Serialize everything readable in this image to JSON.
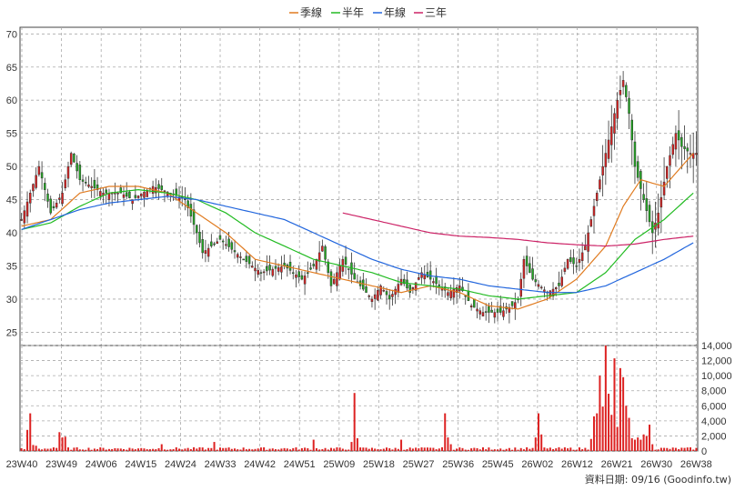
{
  "chart_data": [
    {
      "type": "candlestick",
      "title": "",
      "legend": {
        "placement": "top-center",
        "entries": [
          {
            "name": "季線",
            "color": "#e07b20"
          },
          {
            "name": "半年",
            "color": "#22bb22"
          },
          {
            "name": "年線",
            "color": "#2266dd"
          },
          {
            "name": "三年",
            "color": "#cc2266"
          }
        ]
      },
      "ylim": [
        23,
        71
      ],
      "y_ticks": [
        25,
        30,
        35,
        40,
        45,
        50,
        55,
        60,
        65,
        70
      ],
      "grid": true,
      "x_tick_labels": [
        "23W40",
        "23W49",
        "24W06",
        "24W15",
        "24W24",
        "24W33",
        "24W42",
        "24W51",
        "25W09",
        "25W18",
        "25W27",
        "25W36",
        "25W45",
        "26W02",
        "26W12",
        "26W21",
        "26W30",
        "26W38"
      ],
      "candle_colors": {
        "up": "#dd2222",
        "down": "#22aa22"
      },
      "price_keyframes": [
        [
          0,
          42
        ],
        [
          6,
          50
        ],
        [
          10,
          43
        ],
        [
          14,
          46
        ],
        [
          17,
          52
        ],
        [
          20,
          48
        ],
        [
          24,
          47
        ],
        [
          28,
          46
        ],
        [
          34,
          46
        ],
        [
          38,
          45
        ],
        [
          45,
          47
        ],
        [
          51,
          46
        ],
        [
          56,
          45
        ],
        [
          60,
          40
        ],
        [
          62,
          37
        ],
        [
          68,
          39
        ],
        [
          76,
          36
        ],
        [
          82,
          34
        ],
        [
          90,
          35
        ],
        [
          96,
          33
        ],
        [
          100,
          35
        ],
        [
          103,
          38
        ],
        [
          106,
          32
        ],
        [
          110,
          36
        ],
        [
          114,
          33
        ],
        [
          118,
          31
        ],
        [
          120,
          30
        ],
        [
          123,
          32
        ],
        [
          126,
          30
        ],
        [
          130,
          33
        ],
        [
          133,
          31
        ],
        [
          137,
          34
        ],
        [
          140,
          33
        ],
        [
          146,
          31
        ],
        [
          150,
          32
        ],
        [
          154,
          29
        ],
        [
          158,
          28
        ],
        [
          164,
          28
        ],
        [
          168,
          29
        ],
        [
          170,
          30
        ],
        [
          172,
          36
        ],
        [
          175,
          33
        ],
        [
          180,
          31
        ],
        [
          184,
          32
        ],
        [
          187,
          36
        ],
        [
          190,
          35
        ],
        [
          193,
          38
        ],
        [
          196,
          44
        ],
        [
          200,
          52
        ],
        [
          204,
          60
        ],
        [
          206,
          63
        ],
        [
          208,
          58
        ],
        [
          210,
          50
        ],
        [
          213,
          45
        ],
        [
          216,
          40
        ],
        [
          218,
          43
        ],
        [
          221,
          50
        ],
        [
          224,
          55
        ],
        [
          226,
          53
        ],
        [
          229,
          52
        ]
      ],
      "ma_quarter": [
        [
          0,
          41
        ],
        [
          10,
          42
        ],
        [
          20,
          46
        ],
        [
          30,
          47
        ],
        [
          40,
          47
        ],
        [
          50,
          46
        ],
        [
          60,
          43
        ],
        [
          70,
          40
        ],
        [
          80,
          36
        ],
        [
          90,
          35
        ],
        [
          100,
          34
        ],
        [
          110,
          33
        ],
        [
          120,
          32
        ],
        [
          130,
          31
        ],
        [
          140,
          32
        ],
        [
          150,
          31
        ],
        [
          160,
          29
        ],
        [
          170,
          28.5
        ],
        [
          180,
          30
        ],
        [
          190,
          33
        ],
        [
          200,
          38
        ],
        [
          206,
          44
        ],
        [
          212,
          48
        ],
        [
          220,
          47
        ],
        [
          230,
          52
        ]
      ],
      "ma_halfyear": [
        [
          0,
          40.5
        ],
        [
          10,
          41.5
        ],
        [
          20,
          44
        ],
        [
          30,
          46
        ],
        [
          40,
          46.5
        ],
        [
          50,
          46
        ],
        [
          60,
          45
        ],
        [
          70,
          43
        ],
        [
          80,
          40
        ],
        [
          90,
          38
        ],
        [
          100,
          36
        ],
        [
          110,
          35
        ],
        [
          120,
          34
        ],
        [
          130,
          32.5
        ],
        [
          140,
          32
        ],
        [
          150,
          31.5
        ],
        [
          160,
          30.5
        ],
        [
          170,
          30
        ],
        [
          180,
          30.5
        ],
        [
          190,
          31
        ],
        [
          200,
          34
        ],
        [
          210,
          39
        ],
        [
          220,
          42
        ],
        [
          230,
          46
        ]
      ],
      "ma_year": [
        [
          0,
          40.5
        ],
        [
          10,
          42
        ],
        [
          20,
          43.5
        ],
        [
          30,
          44.5
        ],
        [
          40,
          45
        ],
        [
          50,
          45.5
        ],
        [
          60,
          45
        ],
        [
          70,
          44
        ],
        [
          80,
          43
        ],
        [
          90,
          42
        ],
        [
          100,
          40
        ],
        [
          110,
          38
        ],
        [
          120,
          36
        ],
        [
          130,
          34.5
        ],
        [
          140,
          33.5
        ],
        [
          150,
          33
        ],
        [
          160,
          32
        ],
        [
          170,
          31.5
        ],
        [
          180,
          31
        ],
        [
          190,
          31
        ],
        [
          200,
          32
        ],
        [
          210,
          34
        ],
        [
          220,
          36
        ],
        [
          230,
          38.5
        ]
      ],
      "ma_3year": [
        [
          110,
          43
        ],
        [
          120,
          42
        ],
        [
          130,
          41
        ],
        [
          140,
          40
        ],
        [
          150,
          39.5
        ],
        [
          160,
          39.3
        ],
        [
          170,
          39
        ],
        [
          180,
          38.5
        ],
        [
          190,
          38.2
        ],
        [
          200,
          38
        ],
        [
          210,
          38.3
        ],
        [
          220,
          39
        ],
        [
          230,
          39.5
        ]
      ]
    },
    {
      "type": "bar",
      "ylim": [
        0,
        14000
      ],
      "y_ticks": [
        0,
        2000,
        4000,
        6000,
        8000,
        10000,
        12000,
        14000
      ],
      "y_tick_labels": [
        "0",
        "2,000",
        "4,000",
        "6,000",
        "8,000",
        "10,000",
        "12,000",
        "14,000"
      ],
      "bar_color": "#dd2222",
      "volume_spikes": {
        "2": 2800,
        "3": 5000,
        "4": 800,
        "5": 700,
        "13": 2500,
        "14": 1800,
        "15": 1900,
        "48": 900,
        "66": 1200,
        "100": 1500,
        "113": 1200,
        "114": 7700,
        "115": 1700,
        "130": 1500,
        "145": 5000,
        "146": 1800,
        "147": 900,
        "176": 1800,
        "177": 5000,
        "178": 2200,
        "195": 1600,
        "196": 4600,
        "197": 5000,
        "198": 10000,
        "199": 5900,
        "200": 14000,
        "201": 7600,
        "202": 4800,
        "203": 12300,
        "204": 3200,
        "205": 11000,
        "206": 9800,
        "207": 6000,
        "208": 4400,
        "209": 1700,
        "210": 1500,
        "211": 1800,
        "212": 1500,
        "213": 2200,
        "214": 2000,
        "215": 3500,
        "216": 900
      }
    }
  ],
  "footer": {
    "source_date": "資料日期: 09/16  (Goodinfo.tw)"
  }
}
